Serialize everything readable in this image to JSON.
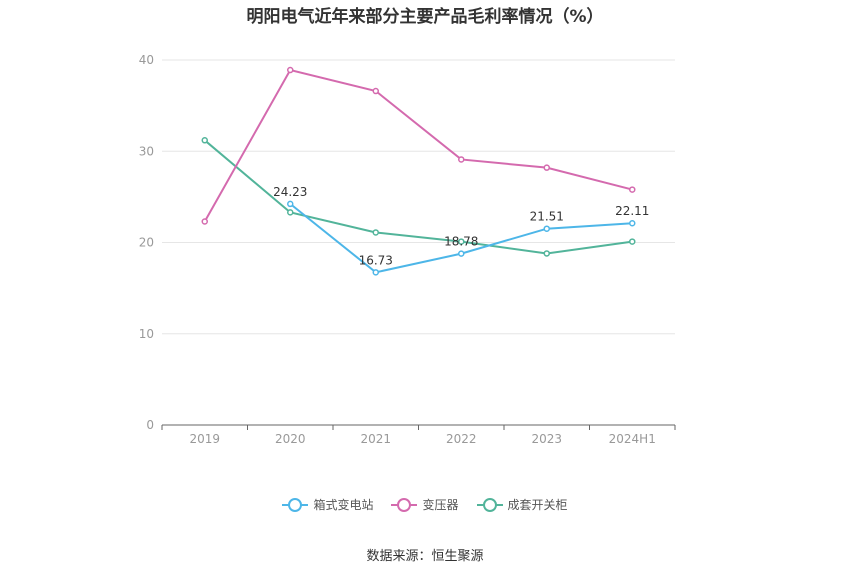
{
  "title": "明阳电气近年来部分主要产品毛利率情况（%）",
  "source": "数据来源：恒生聚源",
  "chart_data": {
    "type": "line",
    "categories": [
      "2019",
      "2020",
      "2021",
      "2022",
      "2023",
      "2024H1"
    ],
    "ylim": [
      0,
      40
    ],
    "yticks": [
      0,
      10,
      20,
      30,
      40
    ],
    "grid": true,
    "legend_position": "bottom",
    "series": [
      {
        "name": "箱式变电站",
        "color": "#4db6e8",
        "values": [
          null,
          24.23,
          16.73,
          18.78,
          21.51,
          22.11
        ],
        "labels": [
          "",
          "24.23",
          "16.73",
          "18.78",
          "21.51",
          "22.11"
        ]
      },
      {
        "name": "变压器",
        "color": "#d46aae",
        "values": [
          22.3,
          38.9,
          36.6,
          29.1,
          28.2,
          25.8
        ],
        "labels": [
          "",
          "",
          "",
          "",
          "",
          ""
        ]
      },
      {
        "name": "成套开关柜",
        "color": "#52b49a",
        "values": [
          31.2,
          23.3,
          21.1,
          20.1,
          18.8,
          20.1
        ],
        "labels": [
          "",
          "",
          "",
          "",
          "",
          ""
        ]
      }
    ]
  }
}
